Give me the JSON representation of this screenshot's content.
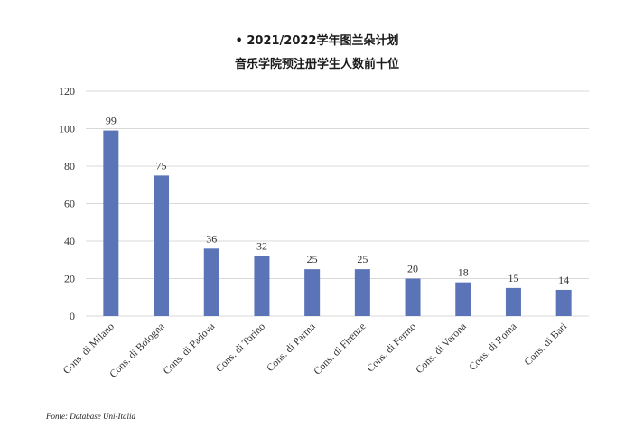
{
  "chart_data": {
    "type": "bar",
    "title": "• 2021/2022学年图兰朵计划",
    "subtitle": "音乐学院预注册学生人数前十位",
    "categories": [
      "Cons. di Milano",
      "Cons. di Bologna",
      "Cons. di Padova",
      "Cons. di Torino",
      "Cons. di Parma",
      "Cons. di Firenze",
      "Cons. di Fermo",
      "Cons. di Verona",
      "Cons. di Roma",
      "Cons. di Bari"
    ],
    "values": [
      99,
      75,
      36,
      32,
      25,
      25,
      20,
      18,
      15,
      14
    ],
    "ylim": [
      0,
      120
    ],
    "yticks": [
      0,
      20,
      40,
      60,
      80,
      100,
      120
    ],
    "grid": true,
    "bar_color": "#5b74b8",
    "data_labels": true
  },
  "source": "Fonte: Database Uni-Italia"
}
